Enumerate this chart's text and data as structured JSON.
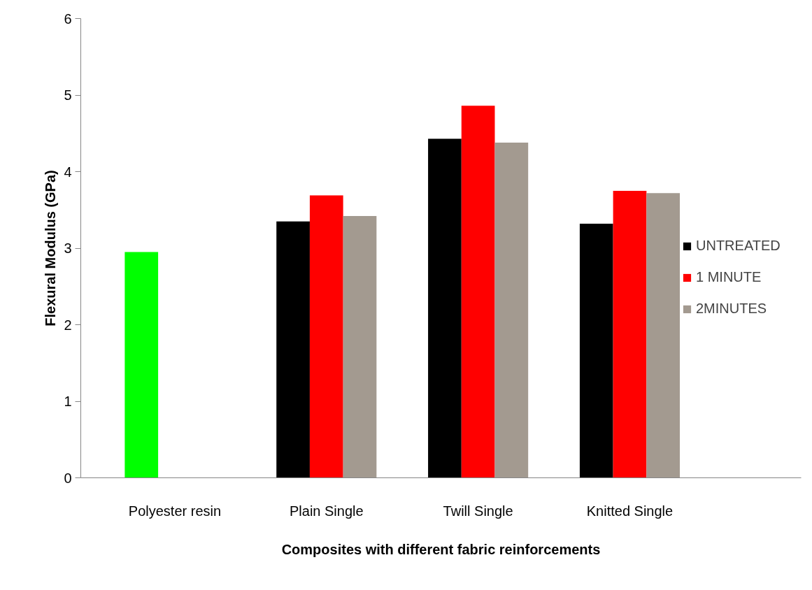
{
  "chart_data": {
    "type": "bar",
    "xlabel": "Composites with different fabric reinforcements",
    "ylabel": "Flexural Modulus (GPa)",
    "categories": [
      "Polyester resin",
      "Plain Single",
      "Twill Single",
      "Knitted Single"
    ],
    "series": [
      {
        "name": "UNTREATED",
        "color": "#000000",
        "colors": [
          "#00ff00",
          "#000000",
          "#000000",
          "#000000"
        ],
        "values": [
          2.95,
          3.35,
          4.43,
          3.32
        ]
      },
      {
        "name": "1 MINUTE",
        "color": "#ff0000",
        "values": [
          null,
          3.69,
          4.86,
          3.75
        ]
      },
      {
        "name": "2MINUTES",
        "color": "#a39a90",
        "values": [
          null,
          3.42,
          4.38,
          3.72
        ]
      }
    ],
    "ylim": [
      0,
      6
    ],
    "yticks": [
      0,
      1,
      2,
      3,
      4,
      5,
      6
    ],
    "grid": false,
    "legend": "right"
  }
}
